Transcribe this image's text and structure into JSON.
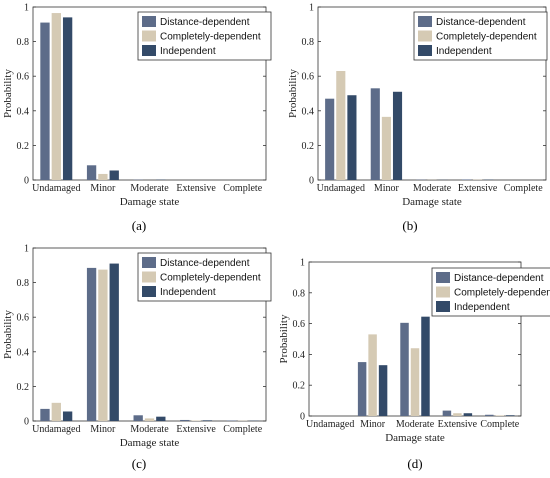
{
  "colors": {
    "distance": "#5d6c89",
    "completely": "#d5cab4",
    "independent": "#334a68"
  },
  "chart_data": [
    {
      "type": "bar",
      "panel_label": "(a)",
      "categories": [
        "Undamaged",
        "Minor",
        "Moderate",
        "Extensive",
        "Complete"
      ],
      "series": [
        {
          "name": "Distance-dependent",
          "values": [
            0.91,
            0.085,
            0.002,
            0.0,
            0.0
          ]
        },
        {
          "name": "Completely-dependent",
          "values": [
            0.965,
            0.035,
            0.0,
            0.0,
            0.0
          ]
        },
        {
          "name": "Independent",
          "values": [
            0.94,
            0.055,
            0.002,
            0.0,
            0.0
          ]
        }
      ],
      "xlabel": "Damage state",
      "ylabel": "Probability",
      "ylim": [
        0,
        1
      ],
      "yticks": [
        "0",
        "0.2",
        "0.4",
        "0.6",
        "0.8",
        "1"
      ],
      "legend": "top-right"
    },
    {
      "type": "bar",
      "panel_label": "(b)",
      "categories": [
        "Undamaged",
        "Minor",
        "Moderate",
        "Extensive",
        "Complete"
      ],
      "series": [
        {
          "name": "Distance-dependent",
          "values": [
            0.47,
            0.53,
            0.002,
            0.003,
            0.0
          ]
        },
        {
          "name": "Completely-dependent",
          "values": [
            0.63,
            0.365,
            0.001,
            0.002,
            0.0
          ]
        },
        {
          "name": "Independent",
          "values": [
            0.49,
            0.51,
            0.001,
            0.002,
            0.0
          ]
        }
      ],
      "xlabel": "Damage state",
      "ylabel": "Probability",
      "ylim": [
        0,
        1
      ],
      "yticks": [
        "0",
        "0.2",
        "0.4",
        "0.6",
        "0.8",
        "1"
      ],
      "legend": "top-right"
    },
    {
      "type": "bar",
      "panel_label": "(c)",
      "categories": [
        "Undamaged",
        "Minor",
        "Moderate",
        "Extensive",
        "Complete"
      ],
      "series": [
        {
          "name": "Distance-dependent",
          "values": [
            0.07,
            0.885,
            0.033,
            0.006,
            0.003
          ]
        },
        {
          "name": "Completely-dependent",
          "values": [
            0.105,
            0.875,
            0.015,
            0.003,
            0.002
          ]
        },
        {
          "name": "Independent",
          "values": [
            0.055,
            0.91,
            0.025,
            0.004,
            0.002
          ]
        }
      ],
      "xlabel": "Damage state",
      "ylabel": "Probability",
      "ylim": [
        0,
        1
      ],
      "yticks": [
        "0",
        "0.2",
        "0.4",
        "0.6",
        "0.8",
        "1"
      ],
      "legend": "top-right"
    },
    {
      "type": "bar",
      "panel_label": "(d)",
      "categories": [
        "Undamaged",
        "Minor",
        "Moderate",
        "Extensive",
        "Complete"
      ],
      "series": [
        {
          "name": "Distance-dependent",
          "values": [
            0.0,
            0.35,
            0.605,
            0.035,
            0.008
          ]
        },
        {
          "name": "Completely-dependent",
          "values": [
            0.0,
            0.53,
            0.44,
            0.018,
            0.004
          ]
        },
        {
          "name": "Independent",
          "values": [
            0.0,
            0.33,
            0.645,
            0.018,
            0.005
          ]
        }
      ],
      "xlabel": "Damage state",
      "ylabel": "Probability",
      "ylim": [
        0,
        1
      ],
      "yticks": [
        "0",
        "0.2",
        "0.4",
        "0.6",
        "0.8",
        "1"
      ],
      "legend": "top-right"
    }
  ]
}
